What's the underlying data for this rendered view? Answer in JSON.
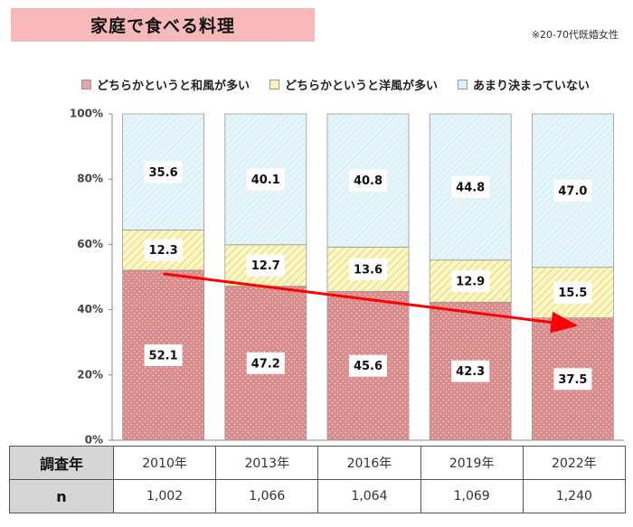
{
  "title": "家庭で食べる料理",
  "note": "※20-70代既婚女性",
  "legend": [
    {
      "label": "どちらかというと和風が多い",
      "color": "#e8a3a3"
    },
    {
      "label": "どちらかというと洋風が多い",
      "color": "#fbf5b8"
    },
    {
      "label": "あまり決まっていない",
      "color": "#daf0f8"
    }
  ],
  "colors": {
    "wafu": "#d98c8c",
    "yofu": "#f6ef9e",
    "undecided": "#d4ecf5",
    "trend_arrow": "#ff0000",
    "axis": "#888888"
  },
  "chart_data": {
    "type": "bar",
    "stacked": true,
    "categories": [
      "2010年",
      "2013年",
      "2016年",
      "2019年",
      "2022年"
    ],
    "series": [
      {
        "name": "どちらかというと和風が多い",
        "values": [
          52.1,
          47.2,
          45.6,
          42.3,
          37.5
        ]
      },
      {
        "name": "どちらかというと洋風が多い",
        "values": [
          12.3,
          12.7,
          13.6,
          12.9,
          15.5
        ]
      },
      {
        "name": "あまり決まっていない",
        "values": [
          35.6,
          40.1,
          40.8,
          44.8,
          47.0
        ]
      }
    ],
    "ylim": [
      0,
      100
    ],
    "yticks": [
      "0%",
      "20%",
      "40%",
      "60%",
      "80%",
      "100%"
    ],
    "grid": false,
    "legend_position": "top"
  },
  "table": {
    "row1_header": "調査年",
    "row2_header": "n",
    "years": [
      "2010年",
      "2013年",
      "2016年",
      "2019年",
      "2022年"
    ],
    "n": [
      "1,002",
      "1,066",
      "1,064",
      "1,069",
      "1,240"
    ]
  }
}
